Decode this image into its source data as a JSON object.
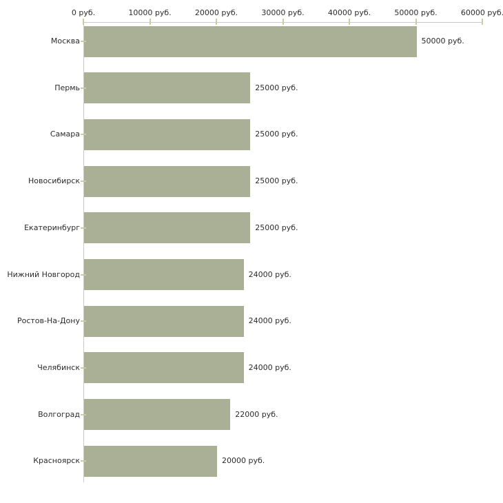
{
  "chart_data": {
    "type": "bar",
    "orientation": "horizontal",
    "title": "",
    "xlabel": "",
    "ylabel": "",
    "unit": "руб.",
    "grid": false,
    "legend": false,
    "categories": [
      "Москва",
      "Пермь",
      "Самара",
      "Новосибирск",
      "Екатеринбург",
      "Нижний Новгород",
      "Ростов-На-Дону",
      "Челябинск",
      "Волгоград",
      "Красноярск"
    ],
    "values": [
      50000,
      25000,
      25000,
      25000,
      25000,
      24000,
      24000,
      24000,
      22000,
      20000
    ],
    "value_labels": [
      "50000 руб.",
      "25000 руб.",
      "25000 руб.",
      "25000 руб.",
      "25000 руб.",
      "24000 руб.",
      "24000 руб.",
      "24000 руб.",
      "22000 руб.",
      "20000 руб."
    ],
    "x_axis": {
      "position": "top",
      "range": [
        0,
        60000
      ],
      "tick_values": [
        0,
        10000,
        20000,
        30000,
        40000,
        50000,
        60000
      ],
      "tick_labels": [
        "0 руб.",
        "10000 руб.",
        "20000 руб.",
        "30000 руб.",
        "40000 руб.",
        "50000 руб.",
        "60000 руб."
      ]
    },
    "colors": {
      "bar": "#a9b096",
      "axis_line": "#c9c9c9",
      "tick_mark": "#c9cca1",
      "text": "#2b2b2b",
      "background": "#ffffff"
    }
  }
}
